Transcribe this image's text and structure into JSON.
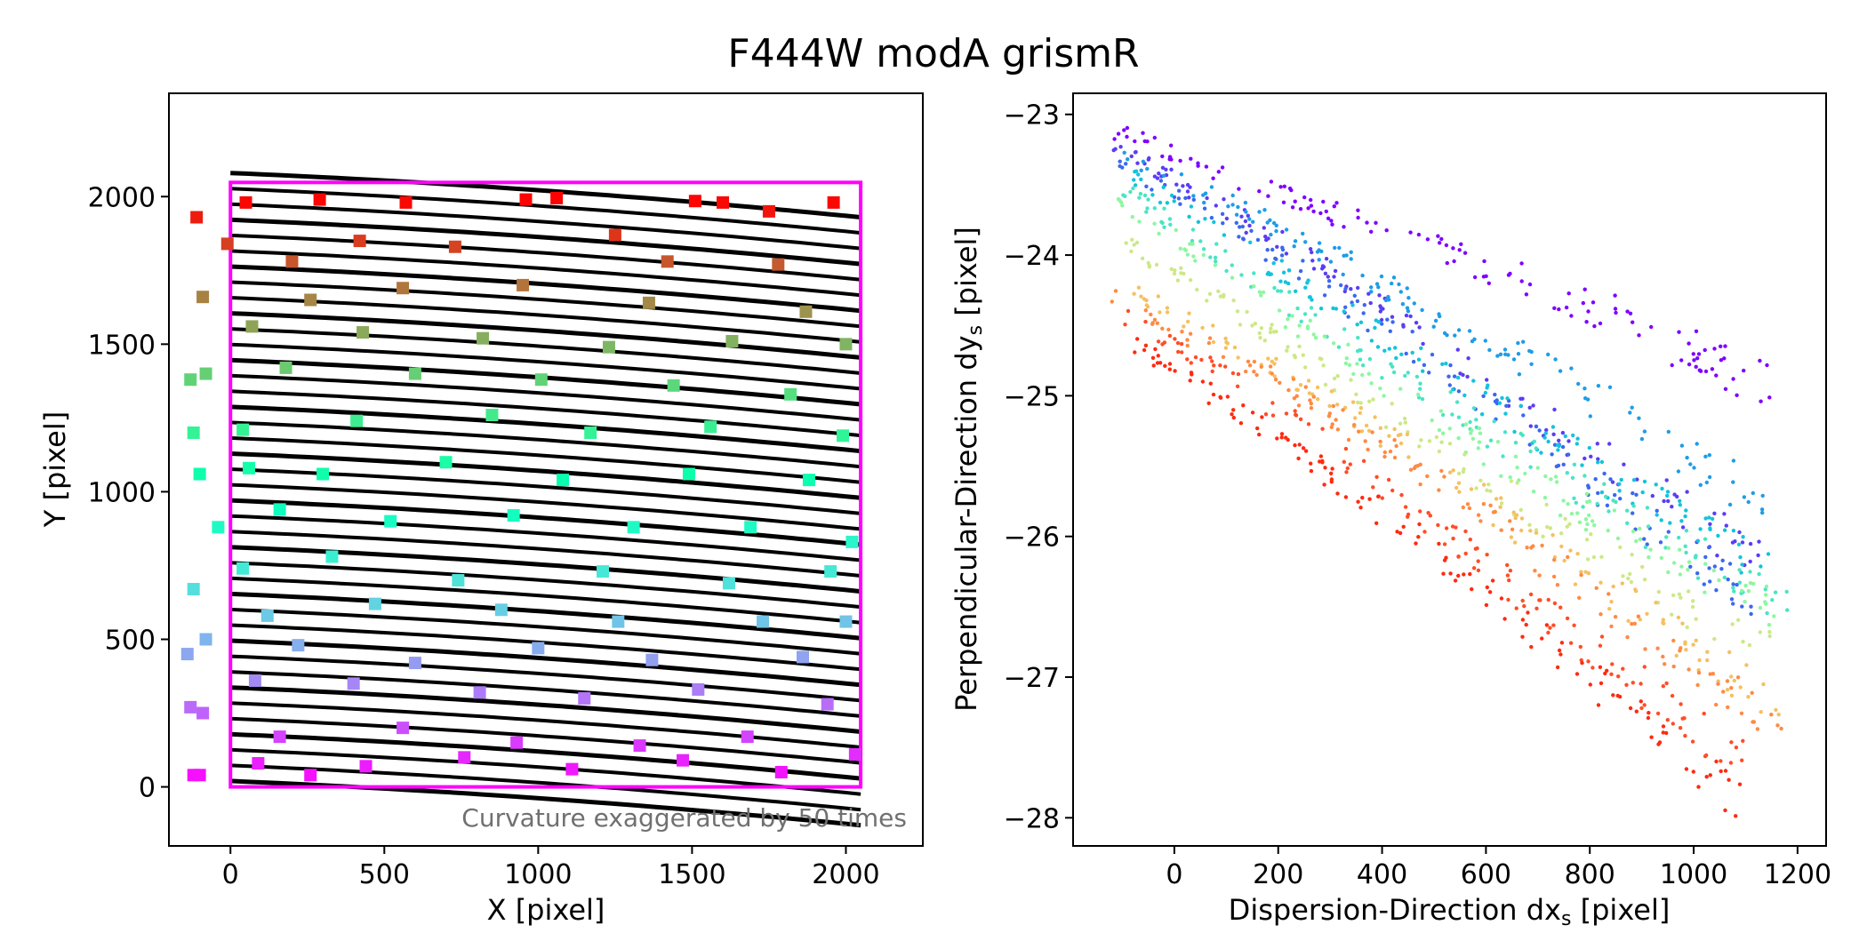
{
  "figure": {
    "title": "F444W modA grismR"
  },
  "chart_data": [
    {
      "type": "scatter",
      "panel": "left",
      "xlabel": "X [pixel]",
      "ylabel": "Y [pixel]",
      "xlim": [
        -200,
        2250
      ],
      "ylim": [
        -200,
        2350
      ],
      "xticks": [
        0,
        500,
        1000,
        1500,
        2000
      ],
      "yticks": [
        0,
        500,
        1000,
        1500,
        2000
      ],
      "annotation": "Curvature exaggerated by 50 times",
      "detector_box": {
        "x": [
          0,
          2048
        ],
        "y": [
          0,
          2048
        ],
        "color": "#ff00ff"
      },
      "traces": {
        "description_color": "#000000",
        "count": 40,
        "x_range": [
          0,
          2048
        ],
        "y_start": 2080,
        "y_end": 20,
        "curvature_drop_at_x_max": 150
      },
      "sources": {
        "marker": "square",
        "colormap": "rainbow (purple at Y=0, red at Y=2000)",
        "points": [
          {
            "x": -110,
            "y": 1930
          },
          {
            "x": 50,
            "y": 1980
          },
          {
            "x": 290,
            "y": 1990
          },
          {
            "x": 570,
            "y": 1980
          },
          {
            "x": 960,
            "y": 1990
          },
          {
            "x": 1060,
            "y": 1995
          },
          {
            "x": 1510,
            "y": 1985
          },
          {
            "x": 1600,
            "y": 1980
          },
          {
            "x": 1750,
            "y": 1950
          },
          {
            "x": 1960,
            "y": 1980
          },
          {
            "x": -10,
            "y": 1840
          },
          {
            "x": 200,
            "y": 1780
          },
          {
            "x": 420,
            "y": 1850
          },
          {
            "x": 730,
            "y": 1830
          },
          {
            "x": 1250,
            "y": 1870
          },
          {
            "x": 1420,
            "y": 1780
          },
          {
            "x": 1780,
            "y": 1770
          },
          {
            "x": -90,
            "y": 1660
          },
          {
            "x": 260,
            "y": 1650
          },
          {
            "x": 560,
            "y": 1690
          },
          {
            "x": 950,
            "y": 1700
          },
          {
            "x": 1360,
            "y": 1640
          },
          {
            "x": 1870,
            "y": 1610
          },
          {
            "x": 70,
            "y": 1560
          },
          {
            "x": 430,
            "y": 1540
          },
          {
            "x": 820,
            "y": 1520
          },
          {
            "x": 1230,
            "y": 1490
          },
          {
            "x": 1630,
            "y": 1510
          },
          {
            "x": 2000,
            "y": 1500
          },
          {
            "x": -130,
            "y": 1380
          },
          {
            "x": -80,
            "y": 1400
          },
          {
            "x": 180,
            "y": 1420
          },
          {
            "x": 600,
            "y": 1400
          },
          {
            "x": 1010,
            "y": 1380
          },
          {
            "x": 1440,
            "y": 1360
          },
          {
            "x": 1820,
            "y": 1330
          },
          {
            "x": -120,
            "y": 1200
          },
          {
            "x": 40,
            "y": 1210
          },
          {
            "x": 410,
            "y": 1240
          },
          {
            "x": 850,
            "y": 1260
          },
          {
            "x": 1170,
            "y": 1200
          },
          {
            "x": 1560,
            "y": 1220
          },
          {
            "x": 1990,
            "y": 1190
          },
          {
            "x": -100,
            "y": 1060
          },
          {
            "x": 60,
            "y": 1080
          },
          {
            "x": 300,
            "y": 1060
          },
          {
            "x": 700,
            "y": 1100
          },
          {
            "x": 1080,
            "y": 1040
          },
          {
            "x": 1490,
            "y": 1060
          },
          {
            "x": 1880,
            "y": 1040
          },
          {
            "x": -40,
            "y": 880
          },
          {
            "x": 160,
            "y": 940
          },
          {
            "x": 520,
            "y": 900
          },
          {
            "x": 920,
            "y": 920
          },
          {
            "x": 1310,
            "y": 880
          },
          {
            "x": 1690,
            "y": 880
          },
          {
            "x": 2020,
            "y": 830
          },
          {
            "x": 40,
            "y": 740
          },
          {
            "x": 330,
            "y": 780
          },
          {
            "x": 740,
            "y": 700
          },
          {
            "x": 1210,
            "y": 730
          },
          {
            "x": 1620,
            "y": 690
          },
          {
            "x": 1950,
            "y": 730
          },
          {
            "x": -120,
            "y": 670
          },
          {
            "x": 120,
            "y": 580
          },
          {
            "x": 470,
            "y": 620
          },
          {
            "x": 880,
            "y": 600
          },
          {
            "x": 1260,
            "y": 560
          },
          {
            "x": 1730,
            "y": 560
          },
          {
            "x": 2000,
            "y": 560
          },
          {
            "x": -80,
            "y": 500
          },
          {
            "x": 220,
            "y": 480
          },
          {
            "x": 600,
            "y": 420
          },
          {
            "x": 1000,
            "y": 470
          },
          {
            "x": 1370,
            "y": 430
          },
          {
            "x": 1860,
            "y": 440
          },
          {
            "x": -140,
            "y": 450
          },
          {
            "x": 80,
            "y": 360
          },
          {
            "x": 400,
            "y": 350
          },
          {
            "x": 810,
            "y": 320
          },
          {
            "x": 1150,
            "y": 300
          },
          {
            "x": 1520,
            "y": 330
          },
          {
            "x": 1940,
            "y": 280
          },
          {
            "x": -130,
            "y": 270
          },
          {
            "x": -90,
            "y": 250
          },
          {
            "x": 160,
            "y": 170
          },
          {
            "x": 560,
            "y": 200
          },
          {
            "x": 930,
            "y": 150
          },
          {
            "x": 1330,
            "y": 140
          },
          {
            "x": 1680,
            "y": 170
          },
          {
            "x": 2030,
            "y": 110
          },
          {
            "x": 90,
            "y": 80
          },
          {
            "x": 440,
            "y": 70
          },
          {
            "x": 760,
            "y": 100
          },
          {
            "x": 1110,
            "y": 60
          },
          {
            "x": 1470,
            "y": 90
          },
          {
            "x": 1790,
            "y": 50
          },
          {
            "x": -120,
            "y": 40
          },
          {
            "x": -100,
            "y": 40
          },
          {
            "x": 260,
            "y": 40
          }
        ]
      }
    },
    {
      "type": "scatter",
      "panel": "right",
      "xlabel": "Dispersion-Direction dx",
      "xlabel_sub": "s",
      "xlabel_unit": " [pixel]",
      "ylabel": "Perpendicular-Direction dy",
      "ylabel_sub": "s",
      "ylabel_unit": " [pixel]",
      "xlim": [
        -195,
        1255
      ],
      "ylim": [
        -28.2,
        -22.85
      ],
      "xticks": [
        0,
        200,
        400,
        600,
        800,
        1000,
        1200
      ],
      "yticks": [
        -23,
        -24,
        -25,
        -26,
        -27,
        -28
      ],
      "series": [
        {
          "color": "#7f00ff",
          "x": [
            -130,
            200,
            500,
            800,
            1150
          ],
          "y": [
            -23.1,
            -23.55,
            -23.95,
            -24.35,
            -24.95
          ]
        },
        {
          "color": "#5a3df5",
          "x": [
            -120,
            200,
            500,
            800,
            1140
          ],
          "y": [
            -23.2,
            -23.9,
            -24.6,
            -25.4,
            -26.2
          ]
        },
        {
          "color": "#3b68f0",
          "x": [
            -110,
            200,
            500,
            800,
            1130
          ],
          "y": [
            -23.35,
            -24.0,
            -24.75,
            -25.6,
            -26.5
          ]
        },
        {
          "color": "#1f9ce8",
          "x": [
            -100,
            200,
            500,
            800,
            1150
          ],
          "y": [
            -23.3,
            -23.8,
            -24.4,
            -25.0,
            -25.8
          ]
        },
        {
          "color": "#14c3dc",
          "x": [
            -100,
            200,
            500,
            800,
            1160
          ],
          "y": [
            -23.4,
            -24.1,
            -24.8,
            -25.5,
            -26.3
          ]
        },
        {
          "color": "#4ae4c4",
          "x": [
            -110,
            200,
            500,
            800,
            1180
          ],
          "y": [
            -23.5,
            -24.3,
            -25.0,
            -25.7,
            -26.5
          ]
        },
        {
          "color": "#8cf7a0",
          "x": [
            -110,
            200,
            500,
            800,
            1180
          ],
          "y": [
            -23.6,
            -24.4,
            -25.15,
            -25.85,
            -26.6
          ]
        },
        {
          "color": "#cde886",
          "x": [
            -100,
            200,
            500,
            800,
            1170
          ],
          "y": [
            -23.9,
            -24.6,
            -25.35,
            -26.1,
            -26.9
          ]
        },
        {
          "color": "#f5c060",
          "x": [
            -110,
            200,
            500,
            800,
            1170
          ],
          "y": [
            -24.2,
            -24.8,
            -25.5,
            -26.3,
            -27.2
          ]
        },
        {
          "color": "#ff8a43",
          "x": [
            -120,
            200,
            500,
            800,
            1170
          ],
          "y": [
            -24.3,
            -24.9,
            -25.6,
            -26.4,
            -27.4
          ]
        },
        {
          "color": "#ff4d26",
          "x": [
            -110,
            200,
            500,
            800,
            1100
          ],
          "y": [
            -24.4,
            -25.1,
            -25.9,
            -26.8,
            -27.6
          ]
        },
        {
          "color": "#ff2a10",
          "x": [
            -90,
            200,
            500,
            800,
            1090
          ],
          "y": [
            -24.6,
            -25.3,
            -26.1,
            -27.0,
            -27.9
          ]
        }
      ]
    }
  ]
}
